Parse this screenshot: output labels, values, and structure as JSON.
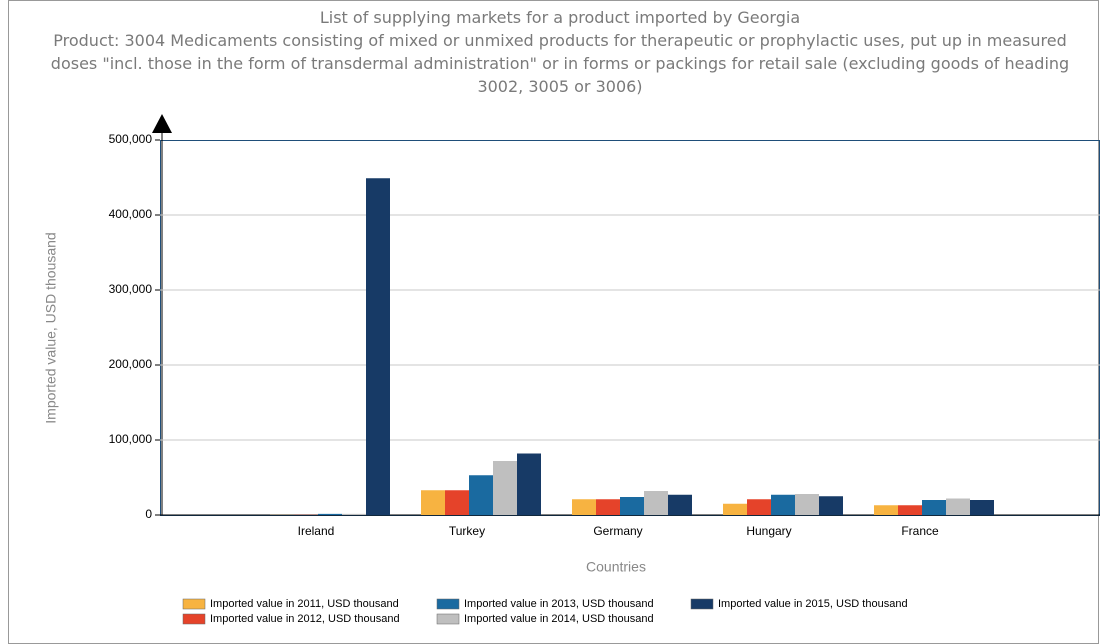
{
  "chart_data": {
    "type": "bar",
    "title": "List of supplying markets for a product imported by Georgia",
    "subtitle": "Product: 3004 Medicaments consisting of mixed or unmixed products for therapeutic or prophylactic uses, put up in measured doses \"incl. those in the form of transdermal administration\" or in forms or packings for retail sale (excluding goods of heading 3002, 3005 or 3006)",
    "x_label": "Countries",
    "y_label": "Imported value, USD thousand",
    "categories": [
      "Ireland",
      "Turkey",
      "Germany",
      "Hungary",
      "France"
    ],
    "series": [
      {
        "name": "Imported value in 2011, USD thousand",
        "color": "#f7b341",
        "values": [
          200,
          33000,
          21000,
          15000,
          13000
        ]
      },
      {
        "name": "Imported value in 2012, USD thousand",
        "color": "#e5432a",
        "values": [
          300,
          33000,
          21000,
          21000,
          13000
        ]
      },
      {
        "name": "Imported value in 2013, USD thousand",
        "color": "#1a6aa0",
        "values": [
          1500,
          53000,
          24000,
          27000,
          20000
        ]
      },
      {
        "name": "Imported value in 2014, USD thousand",
        "color": "#bfbfbf",
        "values": [
          1500,
          72000,
          32000,
          28000,
          22000
        ]
      },
      {
        "name": "Imported value in 2015, USD thousand",
        "color": "#173a66",
        "values": [
          449000,
          82000,
          27000,
          25000,
          20000
        ]
      }
    ],
    "ylim": [
      0,
      500000
    ],
    "yticks": [
      0,
      {
        "value": 100000,
        "label": "100,000"
      },
      {
        "value": 200000,
        "label": "200,000"
      },
      {
        "value": 300000,
        "label": "300,000"
      },
      {
        "value": 400000,
        "label": "400,000"
      },
      {
        "value": 500000,
        "label": "500,000"
      }
    ],
    "grid": true
  }
}
